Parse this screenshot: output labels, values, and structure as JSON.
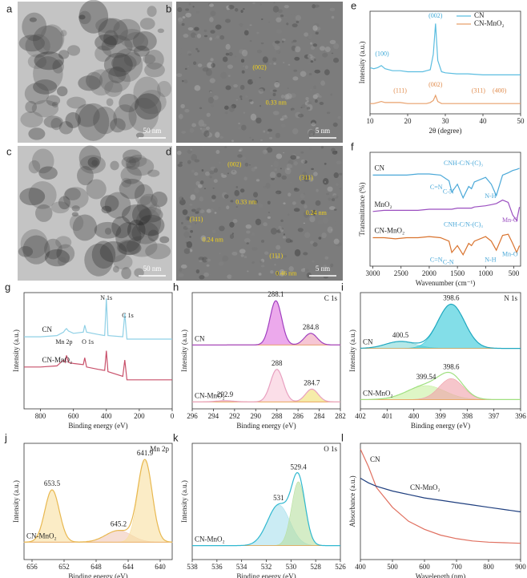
{
  "images": [
    {
      "panel": "a",
      "scale_bar": "50 nm",
      "annotations": []
    },
    {
      "panel": "b",
      "scale_bar": "5 nm",
      "annotations": [
        "(002)",
        "0.33 nm"
      ]
    },
    {
      "panel": "c",
      "scale_bar": "50 nm",
      "annotations": []
    },
    {
      "panel": "d",
      "scale_bar": "5 nm",
      "annotations": [
        "(002)",
        "0.33 nm",
        "(311)",
        "0.24 nm",
        "(311)",
        "0.24 nm",
        "(111)",
        "0.46 nm"
      ]
    }
  ],
  "chart_data": [
    {
      "type": "line",
      "panel": "e",
      "xlabel": "2θ (degree)",
      "ylabel": "Intensity (a.u.)",
      "xlim": [
        10,
        50
      ],
      "xticks": [
        10,
        20,
        30,
        40,
        50
      ],
      "ylim": [
        0,
        100
      ],
      "legend": "upper right",
      "x": [
        10,
        11,
        12,
        13,
        14,
        16,
        18,
        20,
        22,
        24,
        25,
        26,
        26.8,
        27.4,
        28,
        29,
        30,
        33,
        36,
        40,
        44,
        47,
        50
      ],
      "series": [
        {
          "name": "CN",
          "color": "#5bbde0",
          "values": [
            45,
            44,
            45,
            47,
            44,
            42,
            42,
            41,
            41,
            41,
            42,
            43,
            58,
            88,
            52,
            41,
            40,
            39,
            39,
            38,
            38,
            38,
            38
          ]
        },
        {
          "name": "CN-MnO₂",
          "color": "#e8a06b",
          "values": [
            10,
            10,
            11,
            12,
            11,
            11,
            11,
            10,
            10,
            10,
            10,
            11,
            13,
            18,
            12,
            10,
            10,
            10,
            10,
            10,
            10,
            10,
            10
          ]
        }
      ],
      "annotations": [
        "(002)",
        "(100)",
        "(111)",
        "(002)",
        "(311)",
        "(400)"
      ]
    },
    {
      "type": "line",
      "panel": "f",
      "xlabel": "Wavenumber (cm⁻¹)",
      "ylabel": "Transmittance (%)",
      "xlim": [
        3050,
        380
      ],
      "xticks": [
        3000,
        2500,
        2000,
        1500,
        1000,
        500
      ],
      "ylim": [
        0,
        100
      ],
      "legend": "inline",
      "x": [
        3000,
        2800,
        2600,
        2400,
        2200,
        2000,
        1800,
        1650,
        1600,
        1500,
        1400,
        1300,
        1250,
        1200,
        1000,
        900,
        810,
        700,
        600,
        520,
        450,
        400
      ],
      "series": [
        {
          "name": "CN",
          "color": "#4aa8d8",
          "values": [
            80,
            80,
            80,
            80,
            81,
            81,
            80,
            75,
            65,
            72,
            60,
            70,
            68,
            74,
            78,
            72,
            62,
            80,
            82,
            84,
            85,
            86
          ]
        },
        {
          "name": "MnO₂",
          "color": "#9b4fc0",
          "values": [
            48,
            49,
            49,
            49,
            49,
            50,
            50,
            50,
            50,
            51,
            51,
            51,
            51,
            52,
            53,
            54,
            55,
            58,
            56,
            45,
            40,
            52
          ]
        },
        {
          "name": "CN-MnO₂",
          "color": "#d9732e",
          "values": [
            25,
            25,
            24,
            25,
            25,
            26,
            25,
            22,
            12,
            18,
            10,
            20,
            18,
            22,
            26,
            22,
            14,
            27,
            28,
            20,
            12,
            18
          ]
        }
      ],
      "annotations": [
        "C=N",
        "C-N",
        "CNH-C/N-(C)₃",
        "N-H",
        "Mn-O",
        "CNH-C/N-(C)₃",
        "C=N",
        "C-N",
        "N-H",
        "Mn-O"
      ]
    },
    {
      "type": "line",
      "panel": "g",
      "xlabel": "Binding energy (eV)",
      "ylabel": "Intensity (a.u.)",
      "xlim": [
        900,
        0
      ],
      "xticks": [
        800,
        600,
        400,
        200,
        0
      ],
      "ylim": [
        0,
        100
      ],
      "legend": "inline",
      "x": [
        900,
        800,
        700,
        660,
        650,
        642,
        630,
        600,
        540,
        531,
        520,
        450,
        410,
        400,
        390,
        300,
        288,
        275,
        200,
        100,
        0
      ],
      "series": [
        {
          "name": "CN",
          "color": "#8fd0e6",
          "values": [
            62,
            62,
            63,
            66,
            68,
            69,
            67,
            65,
            66,
            72,
            66,
            64,
            63,
            95,
            63,
            62,
            82,
            60,
            60,
            60,
            60
          ]
        },
        {
          "name": "CN-MnO₂",
          "color": "#c8506a",
          "values": [
            36,
            36,
            37,
            42,
            40,
            46,
            40,
            39,
            38,
            44,
            36,
            34,
            33,
            50,
            32,
            28,
            42,
            25,
            25,
            25,
            25
          ]
        }
      ],
      "annotations": [
        "N 1s",
        "C 1s",
        "Mn 2p",
        "O 1s"
      ]
    },
    {
      "type": "xps_fit",
      "panel": "h",
      "title": "C 1s",
      "xlabel": "Binding energy (eV)",
      "ylabel": "Intensity (a.u.)",
      "xlim": [
        296,
        282
      ],
      "xticks": [
        296,
        294,
        292,
        290,
        288,
        286,
        284,
        282
      ],
      "ylim": [
        0,
        100
      ],
      "spectra": [
        {
          "name": "CN",
          "line_color": "#a040c0",
          "baseline": 55,
          "peaks": [
            288.1,
            284.8
          ],
          "heights": [
            38,
            10
          ],
          "widths": [
            0.55,
            0.6
          ],
          "colors": [
            "#e070e0",
            "#f0a0b8"
          ]
        },
        {
          "name": "CN-MnO₂",
          "line_color": "#e8a0c0",
          "baseline": 6,
          "peaks": [
            292.9,
            288,
            284.7
          ],
          "heights": [
            1,
            28,
            11
          ],
          "widths": [
            0.8,
            0.6,
            0.6
          ],
          "colors": [
            "#f8c8d8",
            "#f8c8d8",
            "#f0e070"
          ]
        }
      ]
    },
    {
      "type": "xps_fit",
      "panel": "i",
      "title": "N 1s",
      "xlabel": "Binding energy (eV)",
      "ylabel": "Intensity (a.u.)",
      "xlim": [
        402,
        396
      ],
      "xticks": [
        402,
        401,
        400,
        399,
        398,
        397,
        396
      ],
      "ylim": [
        0,
        100
      ],
      "spectra": [
        {
          "name": "CN",
          "line_color": "#20a8c0",
          "baseline": 52,
          "peaks": [
            400.5,
            398.6
          ],
          "heights": [
            6,
            38
          ],
          "widths": [
            0.55,
            0.5
          ],
          "colors": [
            "#80d8d8",
            "#30c8d8"
          ]
        },
        {
          "name": "CN-MnO₂",
          "line_color": "#a0e080",
          "baseline": 8,
          "peaks": [
            399.54,
            398.6
          ],
          "heights": [
            12,
            18
          ],
          "widths": [
            0.7,
            0.45
          ],
          "colors": [
            "#c8f0a0",
            "#f0a0a8"
          ]
        }
      ]
    },
    {
      "type": "xps_fit",
      "panel": "j",
      "title": "Mn 2p",
      "xlabel": "Binding energy (eV)",
      "ylabel": "Intensity (a.u.)",
      "xlim": [
        657,
        638.5
      ],
      "xticks": [
        656,
        652,
        648,
        644,
        640
      ],
      "ylim": [
        0,
        100
      ],
      "spectra": [
        {
          "name": "CN-MnO₂",
          "line_color": "#e8b850",
          "baseline": 15,
          "peaks": [
            653.5,
            645.2,
            641.9
          ],
          "heights": [
            45,
            10,
            70
          ],
          "widths": [
            0.9,
            1.6,
            0.9
          ],
          "colors": [
            "#f8e0a0",
            "#f0c8b8",
            "#f8e0a0"
          ]
        }
      ]
    },
    {
      "type": "xps_fit",
      "panel": "k",
      "title": "O 1s",
      "xlabel": "Binding energy (eV)",
      "ylabel": "Intensity (a.u.)",
      "xlim": [
        538,
        526
      ],
      "xticks": [
        538,
        536,
        534,
        532,
        530,
        528,
        526
      ],
      "ylim": [
        0,
        100
      ],
      "spectra": [
        {
          "name": "CN-MnO₂",
          "line_color": "#30b8d0",
          "baseline": 12,
          "peaks": [
            531,
            529.4
          ],
          "heights": [
            35,
            55
          ],
          "widths": [
            0.9,
            0.55
          ],
          "colors": [
            "#a8e0ec",
            "#b8e0a0"
          ]
        }
      ]
    },
    {
      "type": "line",
      "panel": "l",
      "xlabel": "Wavelength (nm)",
      "ylabel": "Absorbance (a.u.)",
      "xlim": [
        400,
        900
      ],
      "xticks": [
        400,
        500,
        600,
        700,
        800,
        900
      ],
      "ylim": [
        0,
        100
      ],
      "legend": "inline",
      "x": [
        400,
        425,
        450,
        500,
        550,
        600,
        650,
        700,
        750,
        800,
        850,
        900
      ],
      "series": [
        {
          "name": "CN",
          "color": "#e07060",
          "values": [
            95,
            80,
            62,
            45,
            33,
            26,
            21,
            18,
            16,
            15,
            14.5,
            14
          ]
        },
        {
          "name": "CN-MnO₂",
          "color": "#1f3f7f",
          "values": [
            70,
            66,
            63,
            59,
            56,
            53,
            51,
            49,
            47,
            45,
            43,
            41
          ]
        }
      ],
      "annotations": []
    }
  ]
}
